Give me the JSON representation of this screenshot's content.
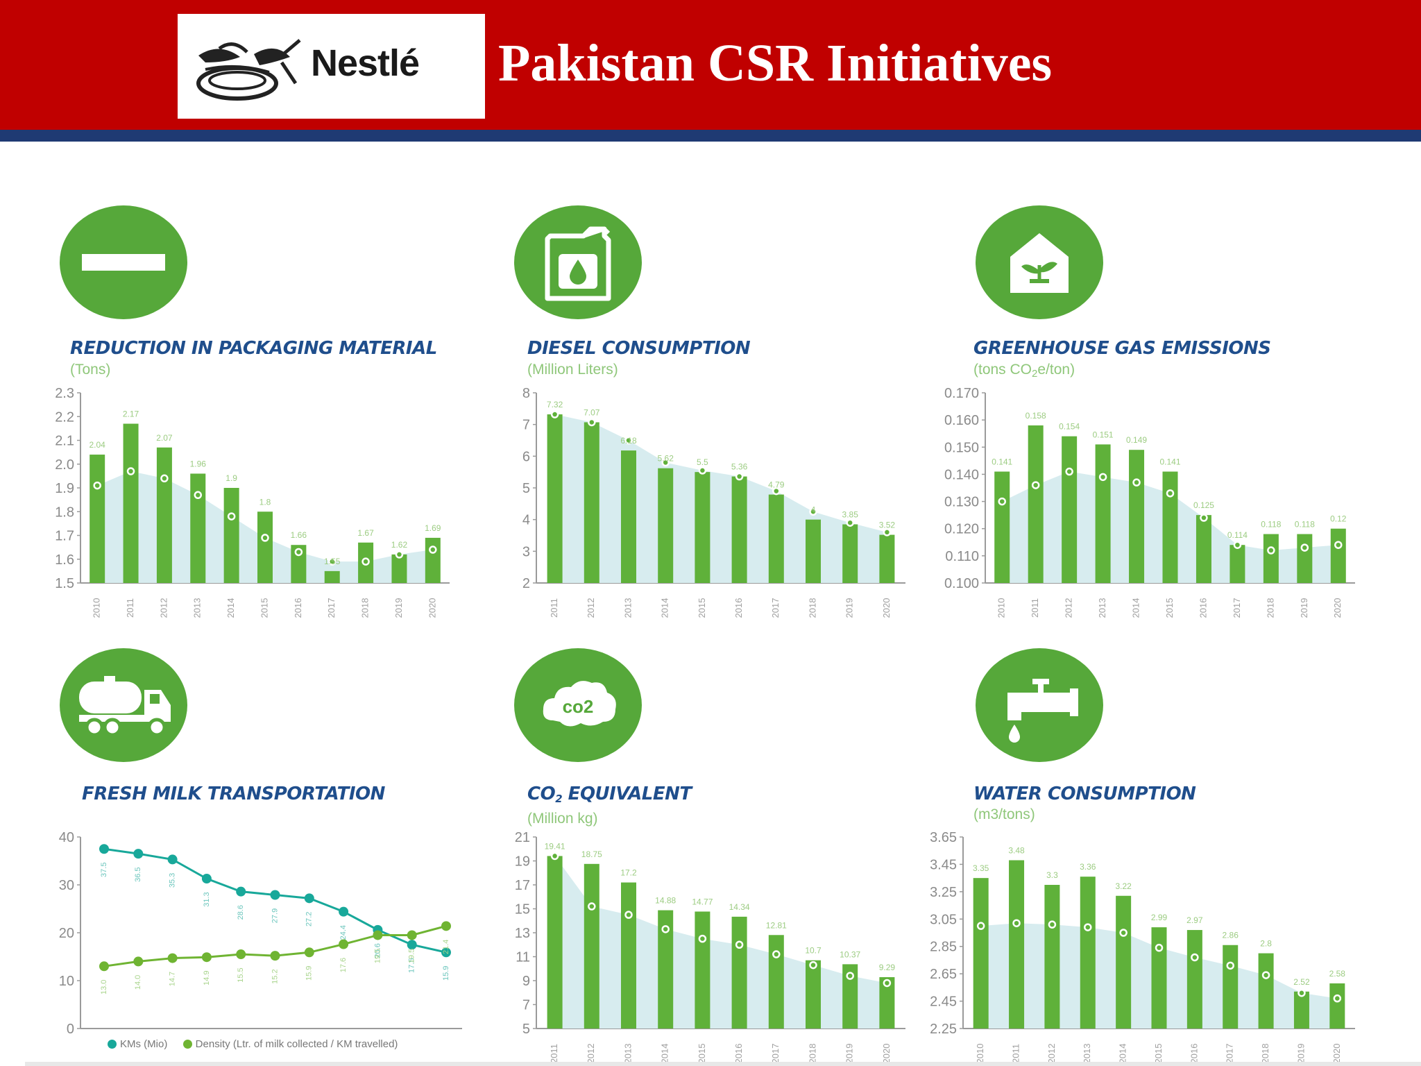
{
  "header": {
    "logo_text": "Nestlé",
    "title": "Pakistan CSR Initiatives",
    "colors": {
      "band": "#c00000",
      "stripe": "#1f3a73"
    }
  },
  "icons": [
    "minus-icon",
    "fuel-can-icon",
    "greenhouse-plant-icon",
    "milk-tanker-truck-icon",
    "co2-cloud-icon",
    "water-tap-icon"
  ],
  "colors": {
    "bar": "#5fb13a",
    "area": "#d7ecef",
    "teal": "#18a89a",
    "green": "#6fb432",
    "axis": "#9a9a9a",
    "title": "#1f4e8c",
    "unit": "#8fc77a",
    "circle": "#56a83a"
  },
  "panels": [
    {
      "title": "REDUCTION IN PACKAGING MATERIAL",
      "unit": "(Tons)"
    },
    {
      "title": "DIESEL CONSUMPTION",
      "unit": "(Million Liters)"
    },
    {
      "title": "GREENHOUSE GAS EMISSIONS",
      "unit_pre": "(tons CO",
      "unit_sub": "2",
      "unit_post": "e/ton)"
    },
    {
      "title": "FRESH MILK TRANSPORTATION"
    },
    {
      "title_pre": "CO",
      "title_sub": "2",
      "title_post": " EQUIVALENT",
      "unit": "(Million kg)"
    },
    {
      "title": "WATER CONSUMPTION",
      "unit": "(m3/tons)"
    }
  ],
  "chart_data": [
    {
      "type": "bar",
      "ylim": [
        1.5,
        2.3
      ],
      "yticks": [
        "1.5",
        "1.6",
        "1.7",
        "1.8",
        "1.9",
        "2.0",
        "2.1",
        "2.2",
        "2.3"
      ],
      "categories": [
        "2010",
        "2011",
        "2012",
        "2013",
        "2014",
        "2015",
        "2016",
        "2017",
        "2018",
        "2019",
        "2020"
      ],
      "values": [
        2.04,
        2.17,
        2.07,
        1.96,
        1.9,
        1.8,
        1.66,
        1.55,
        1.67,
        1.62,
        1.69
      ],
      "value_labels": [
        "2.04",
        "2.17",
        "2.07",
        "1.96",
        "1.9",
        "1.8",
        "1.66",
        "1.55",
        "1.67",
        "1.62",
        "1.69"
      ],
      "trend": [
        1.91,
        1.97,
        1.94,
        1.87,
        1.78,
        1.69,
        1.63,
        1.59,
        1.59,
        1.62,
        1.64
      ]
    },
    {
      "type": "bar",
      "ylim": [
        2,
        8
      ],
      "yticks": [
        "2",
        "3",
        "4",
        "5",
        "6",
        "7",
        "8"
      ],
      "categories": [
        "2011",
        "2012",
        "2013",
        "2014",
        "2015",
        "2016",
        "2017",
        "2018",
        "2019",
        "2020"
      ],
      "values": [
        7.32,
        7.07,
        6.18,
        5.62,
        5.5,
        5.36,
        4.79,
        4,
        3.85,
        3.52
      ],
      "value_labels": [
        "7.32",
        "7.07",
        "6.18",
        "5.62",
        "5.5",
        "5.36",
        "4.79",
        "4",
        "3.85",
        "3.52"
      ],
      "trend": [
        7.32,
        7.07,
        6.5,
        5.8,
        5.55,
        5.36,
        4.9,
        4.25,
        3.9,
        3.6
      ]
    },
    {
      "type": "bar",
      "ylim": [
        0.1,
        0.17
      ],
      "yticks": [
        "0.100",
        "0.110",
        "0.120",
        "0.130",
        "0.140",
        "0.150",
        "0.160",
        "0.170"
      ],
      "categories": [
        "2010",
        "2011",
        "2012",
        "2013",
        "2014",
        "2015",
        "2016",
        "2017",
        "2018",
        "2019",
        "2020"
      ],
      "values": [
        0.141,
        0.158,
        0.154,
        0.151,
        0.149,
        0.141,
        0.125,
        0.114,
        0.118,
        0.118,
        0.12
      ],
      "value_labels": [
        "0.141",
        "0.158",
        "0.154",
        "0.151",
        "0.149",
        "0.141",
        "0.125",
        "0.114",
        "0.118",
        "0.118",
        "0.12"
      ],
      "trend": [
        0.13,
        0.136,
        0.141,
        0.139,
        0.137,
        0.133,
        0.124,
        0.114,
        0.112,
        0.113,
        0.114
      ]
    },
    {
      "type": "line",
      "ylim": [
        0,
        40
      ],
      "yticks": [
        "0",
        "10",
        "20",
        "30",
        "40"
      ],
      "series": [
        {
          "name": "KMs (Mio)",
          "values": [
            37.5,
            36.5,
            35.3,
            31.3,
            28.6,
            27.9,
            27.2,
            24.4,
            20.6,
            17.5,
            15.9
          ],
          "value_labels": [
            "37.5",
            "36.5",
            "35.3",
            "31.3",
            "28.6",
            "27.9",
            "27.2",
            "24.4",
            "20.6",
            "17.5",
            "15.9"
          ]
        },
        {
          "name": "Density (Ltr. of milk collected / KM travelled)",
          "values": [
            13.0,
            14.0,
            14.7,
            14.9,
            15.5,
            15.2,
            15.9,
            17.6,
            19.5,
            19.5,
            21.4
          ],
          "value_labels": [
            "13.0",
            "14.0",
            "14.7",
            "14.9",
            "15.5",
            "15.2",
            "15.9",
            "17.6",
            "19.5",
            "19.5",
            "21.4"
          ]
        }
      ]
    },
    {
      "type": "bar",
      "ylim": [
        5,
        21
      ],
      "yticks": [
        "5",
        "7",
        "9",
        "11",
        "13",
        "15",
        "17",
        "19",
        "21"
      ],
      "categories": [
        "2011",
        "2012",
        "2013",
        "2014",
        "2015",
        "2016",
        "2017",
        "2018",
        "2019",
        "2020"
      ],
      "values": [
        19.41,
        18.75,
        17.2,
        14.88,
        14.77,
        14.34,
        12.81,
        10.7,
        10.37,
        9.29
      ],
      "value_labels": [
        "19.41",
        "18.75",
        "17.2",
        "14.88",
        "14.77",
        "14.34",
        "12.81",
        "10.7",
        "10.37",
        "9.29"
      ],
      "trend": [
        19.41,
        15.2,
        14.5,
        13.3,
        12.5,
        12.0,
        11.2,
        10.3,
        9.4,
        8.8
      ]
    },
    {
      "type": "bar",
      "ylim": [
        2.25,
        3.65
      ],
      "yticks": [
        "2.25",
        "2.45",
        "2.65",
        "2.85",
        "3.05",
        "3.25",
        "3.45",
        "3.65"
      ],
      "categories": [
        "2010",
        "2011",
        "2012",
        "2013",
        "2014",
        "2015",
        "2016",
        "2017",
        "2018",
        "2019",
        "2020"
      ],
      "values": [
        3.35,
        3.48,
        3.3,
        3.36,
        3.22,
        2.99,
        2.97,
        2.86,
        2.8,
        2.52,
        2.58
      ],
      "value_labels": [
        "3.35",
        "3.48",
        "3.3",
        "3.36",
        "3.22",
        "2.99",
        "2.97",
        "2.86",
        "2.8",
        "2.52",
        "2.58"
      ],
      "trend": [
        3.0,
        3.02,
        3.01,
        2.99,
        2.95,
        2.84,
        2.77,
        2.71,
        2.64,
        2.51,
        2.47
      ]
    }
  ]
}
